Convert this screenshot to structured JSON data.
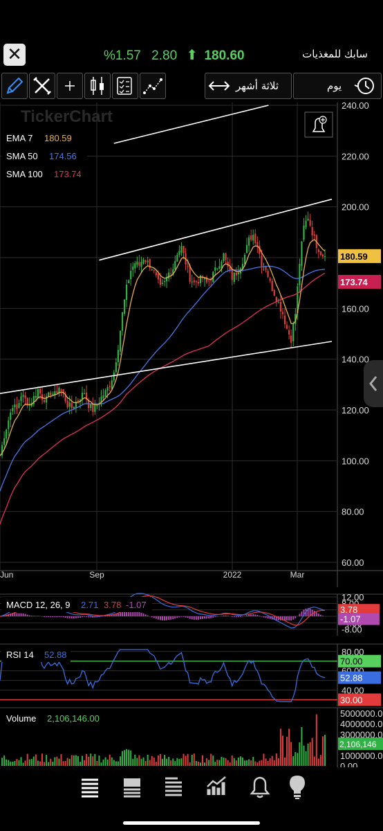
{
  "header": {
    "close_icon": "close-icon",
    "change_pct": "%1.57",
    "change": "2.80",
    "arrow": "up-arrow-icon",
    "last_price": "180.60",
    "symbol_name": "سابك للمغذيات"
  },
  "toolbar": {
    "period_label": "ثلاثة أشهر",
    "interval_label": "يوم",
    "icons": [
      "pencil-icon",
      "tools-icon",
      "crosshair-icon",
      "candles-icon",
      "indicators-icon",
      "trend-icon",
      "swap-icon",
      "history-icon"
    ]
  },
  "colors": {
    "up": "#2fb344",
    "down": "#e23b3b",
    "ema": "#e8b04a",
    "sma50": "#4a78e8",
    "sma100": "#e0325a",
    "trendline": "#ffffff",
    "rsi": "#3a6ee0",
    "rsi_high": "#58d05e",
    "rsi_low": "#e23b3b",
    "macd_line": "#3a6ee0",
    "macd_signal": "#e23b3b",
    "macd_hist": "#b04ab0",
    "volume_up": "#2fb344",
    "volume_down": "#e23b3b"
  },
  "watermark": "TickerChart",
  "chart_data": {
    "type": "candlestick",
    "price_axis": {
      "ticks": [
        "240.00",
        "220.00",
        "200.00",
        "180.00",
        "160.00",
        "140.00",
        "120.00",
        "100.00",
        "80.00",
        "60.00"
      ],
      "ylim": [
        60,
        240
      ]
    },
    "x_axis": {
      "ticks": [
        "Jun",
        "Sep",
        "2022",
        "Mar"
      ]
    },
    "legend": [
      {
        "name": "EMA",
        "param": "7",
        "value": "180.59"
      },
      {
        "name": "SMA",
        "param": "50",
        "value": "174.56"
      },
      {
        "name": "SMA",
        "param": "100",
        "value": "173.74"
      }
    ],
    "last_labels": {
      "price": "180.59",
      "sma100": "173.74"
    },
    "close_path": [
      [
        0,
        102
      ],
      [
        2,
        110
      ],
      [
        4,
        116
      ],
      [
        6,
        122
      ],
      [
        8,
        120
      ],
      [
        10,
        126
      ],
      [
        12,
        124
      ],
      [
        14,
        122
      ],
      [
        16,
        125
      ],
      [
        18,
        128
      ],
      [
        20,
        125
      ],
      [
        22,
        124
      ],
      [
        24,
        127
      ],
      [
        26,
        126
      ],
      [
        28,
        129
      ],
      [
        30,
        126
      ],
      [
        32,
        122
      ],
      [
        34,
        121
      ],
      [
        36,
        123
      ],
      [
        38,
        125
      ],
      [
        40,
        127
      ],
      [
        42,
        122
      ],
      [
        44,
        120
      ],
      [
        46,
        122
      ],
      [
        48,
        125
      ],
      [
        50,
        127
      ],
      [
        52,
        130
      ],
      [
        54,
        135
      ],
      [
        56,
        145
      ],
      [
        58,
        158
      ],
      [
        60,
        168
      ],
      [
        62,
        175
      ],
      [
        64,
        178
      ],
      [
        66,
        177
      ],
      [
        68,
        180
      ],
      [
        70,
        178
      ],
      [
        72,
        176
      ],
      [
        74,
        172
      ],
      [
        76,
        168
      ],
      [
        78,
        170
      ],
      [
        80,
        174
      ],
      [
        82,
        176
      ],
      [
        84,
        182
      ],
      [
        86,
        184
      ],
      [
        88,
        178
      ],
      [
        90,
        172
      ],
      [
        92,
        170
      ],
      [
        94,
        171
      ],
      [
        96,
        172
      ],
      [
        98,
        170
      ],
      [
        100,
        172
      ],
      [
        102,
        175
      ],
      [
        104,
        178
      ],
      [
        106,
        181
      ],
      [
        108,
        176
      ],
      [
        110,
        172
      ],
      [
        112,
        174
      ],
      [
        114,
        177
      ],
      [
        116,
        181
      ],
      [
        118,
        187
      ],
      [
        120,
        189
      ],
      [
        122,
        185
      ],
      [
        124,
        178
      ],
      [
        126,
        176
      ],
      [
        128,
        170
      ],
      [
        130,
        166
      ],
      [
        132,
        162
      ],
      [
        134,
        158
      ],
      [
        136,
        152
      ],
      [
        138,
        148
      ],
      [
        140,
        158
      ],
      [
        142,
        178
      ],
      [
        144,
        192
      ],
      [
        146,
        196
      ],
      [
        148,
        190
      ],
      [
        150,
        185
      ],
      [
        152,
        182
      ],
      [
        154,
        180
      ]
    ],
    "trendlines": [
      {
        "from": [
          0,
          126.5
        ],
        "to": [
          154,
          147
        ]
      },
      {
        "from": [
          47,
          179
        ],
        "to": [
          154,
          203
        ]
      },
      {
        "from": [
          54,
          225
        ],
        "to": [
          124,
          240
        ]
      }
    ],
    "volume_value": "2,106,146.00",
    "volume_axis": [
      "5000000.00",
      "4000000.00",
      "3000000.00",
      "2000000.00",
      "1000000.00",
      "0.00"
    ],
    "volume_last": "2,106,146"
  },
  "macd": {
    "label": "MACD",
    "params": "12, 26, 9",
    "macd": "2.71",
    "signal": "3.78",
    "hist": "-1.07",
    "axis": [
      "12.00",
      "8.00",
      "4.00",
      "0.00",
      "-4.00",
      "-8.00"
    ],
    "tag_signal": "3.78",
    "tag_hist": "-1.07"
  },
  "rsi": {
    "label": "RSI",
    "param": "14",
    "value": "52.88",
    "axis": [
      "80.00",
      "70.00",
      "60.00",
      "50.00",
      "40.00",
      "30.00"
    ],
    "tag_high": "70.00",
    "tag_value": "52.88",
    "tag_low": "30.00"
  },
  "volume": {
    "label": "Volume"
  },
  "footer": {
    "icons": [
      "watchlist-icon",
      "news-icon",
      "portfolio-icon",
      "chart-icon",
      "alerts-icon",
      "ideas-icon"
    ]
  }
}
